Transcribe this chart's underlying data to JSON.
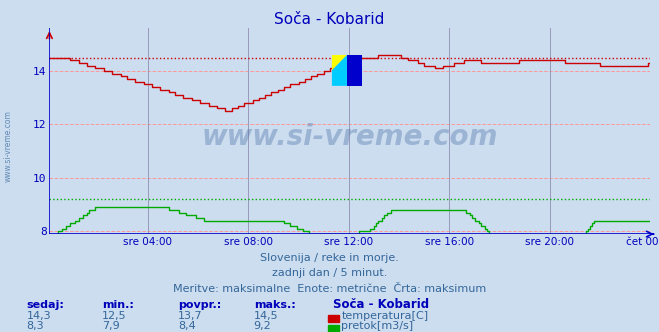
{
  "title": "Soča - Kobarid",
  "bg_color": "#ccddf0",
  "plot_bg_color": "#ccddf0",
  "grid_color_h": "#ff9999",
  "grid_color_v": "#9999bb",
  "temp_color": "#cc0000",
  "flow_color": "#00aa00",
  "axis_color": "#0000cc",
  "text_color": "#336699",
  "header_color": "#0000bb",
  "x_labels": [
    "sre 04:00",
    "sre 08:00",
    "sre 12:00",
    "sre 16:00",
    "sre 20:00",
    "čet 00:00"
  ],
  "x_ticks_frac": [
    0.1667,
    0.3333,
    0.5,
    0.6667,
    0.8333,
    1.0
  ],
  "y_ticks": [
    8,
    10,
    12,
    14
  ],
  "y_min": 7.9,
  "y_max": 15.6,
  "temp_max_line": 14.5,
  "flow_max_line": 9.2,
  "subtitle1": "Slovenija / reke in morje.",
  "subtitle2": "zadnji dan / 5 minut.",
  "subtitle3": "Meritve: maksimalne  Enote: metrične  Črta: maksimum",
  "legend_title": "Soča - Kobarid",
  "stats_headers": [
    "sedaj:",
    "min.:",
    "povpr.:",
    "maks.:"
  ],
  "temp_stats": [
    "14,3",
    "12,5",
    "13,7",
    "14,5"
  ],
  "flow_stats": [
    "8,3",
    "7,9",
    "8,4",
    "9,2"
  ],
  "temp_label": "temperatura[C]",
  "flow_label": "pretok[m3/s]",
  "n_points": 288,
  "watermark": "www.si-vreme.com"
}
